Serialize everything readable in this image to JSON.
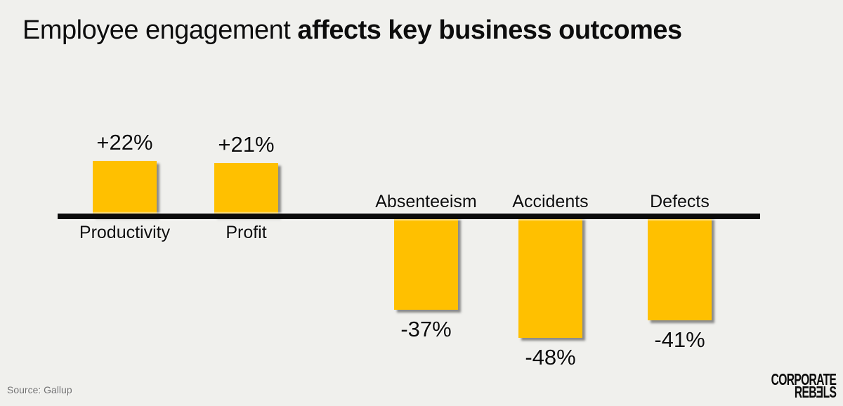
{
  "title": {
    "regular": "Employee engagement ",
    "bold": "affects key business outcomes"
  },
  "source": "Source: Gallup",
  "logo": {
    "line1": "CORPORATE",
    "line2_left": "REB",
    "line2_mirrored": "E",
    "line2_right": "LS"
  },
  "colors": {
    "bar": "#FFC000",
    "axis": "#0b0b0b",
    "background": "#f0f0ed",
    "text": "#0d0d0d",
    "source_text": "#6f6f6f"
  },
  "chart_data": {
    "type": "bar",
    "title": "Employee engagement affects key business outcomes",
    "categories": [
      "Productivity",
      "Profit",
      "Absenteeism",
      "Accidents",
      "Defects"
    ],
    "values": [
      22,
      21,
      -37,
      -48,
      -41
    ],
    "value_labels": [
      "+22%",
      "+21%",
      "-37%",
      "-48%",
      "-41%"
    ],
    "xlabel": "",
    "ylabel": "",
    "ylim": [
      -50,
      25
    ],
    "baseline": 0,
    "grid": false,
    "legend": false,
    "orientation": "vertical",
    "bar_color": "#FFC000"
  }
}
